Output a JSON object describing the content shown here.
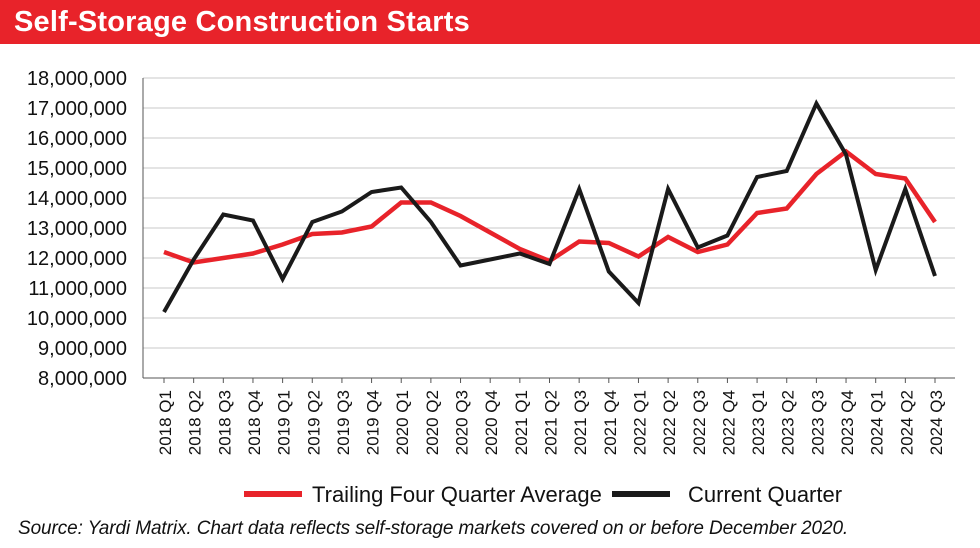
{
  "header": {
    "title": "Self-Storage Construction Starts"
  },
  "footer": {
    "source": "Source: Yardi Matrix. Chart data reflects self-storage markets covered on or before December 2020."
  },
  "colors": {
    "title_bar": "#e8232a",
    "avg_line": "#e8232a",
    "current_line": "#1a1a1a",
    "grid": "#c8c8c8"
  },
  "chart_data": {
    "type": "line",
    "title": "Self-Storage Construction Starts",
    "xlabel": "",
    "ylabel": "",
    "ylim": [
      8000000,
      18000000
    ],
    "y_ticks": [
      8000000,
      9000000,
      10000000,
      11000000,
      12000000,
      13000000,
      14000000,
      15000000,
      16000000,
      17000000,
      18000000
    ],
    "y_tick_labels": [
      "8,000,000",
      "9,000,000",
      "10,000,000",
      "11,000,000",
      "12,000,000",
      "13,000,000",
      "14,000,000",
      "15,000,000",
      "16,000,000",
      "17,000,000",
      "18,000,000"
    ],
    "grid": true,
    "legend_position": "bottom",
    "categories": [
      "2018 Q1",
      "2018 Q2",
      "2018 Q3",
      "2018 Q4",
      "2019 Q1",
      "2019 Q2",
      "2019 Q3",
      "2019 Q4",
      "2020 Q1",
      "2020 Q2",
      "2020 Q3",
      "2020 Q4",
      "2021 Q1",
      "2021 Q2",
      "2021 Q3",
      "2021 Q4",
      "2022 Q1",
      "2022 Q2",
      "2022 Q3",
      "2022 Q4",
      "2023 Q1",
      "2023 Q2",
      "2023 Q3",
      "2023 Q4",
      "2024 Q1",
      "2024 Q2",
      "2024 Q3"
    ],
    "series": [
      {
        "name": "Trailing Four Quarter Average",
        "color": "#e8232a",
        "values": [
          12200000,
          11850000,
          12000000,
          12150000,
          12450000,
          12800000,
          12850000,
          13050000,
          13850000,
          13850000,
          13400000,
          12850000,
          12300000,
          11900000,
          12550000,
          12500000,
          12050000,
          12700000,
          12200000,
          12450000,
          13500000,
          13650000,
          14800000,
          15550000,
          14800000,
          14650000,
          13200000
        ]
      },
      {
        "name": "Current Quarter",
        "color": "#1a1a1a",
        "values": [
          10200000,
          11950000,
          13450000,
          13250000,
          11300000,
          13200000,
          13550000,
          14200000,
          14350000,
          13200000,
          11750000,
          11950000,
          12150000,
          11800000,
          14300000,
          11550000,
          10500000,
          14300000,
          12350000,
          12750000,
          14700000,
          14900000,
          17150000,
          15450000,
          11600000,
          14300000,
          11400000
        ]
      }
    ]
  }
}
